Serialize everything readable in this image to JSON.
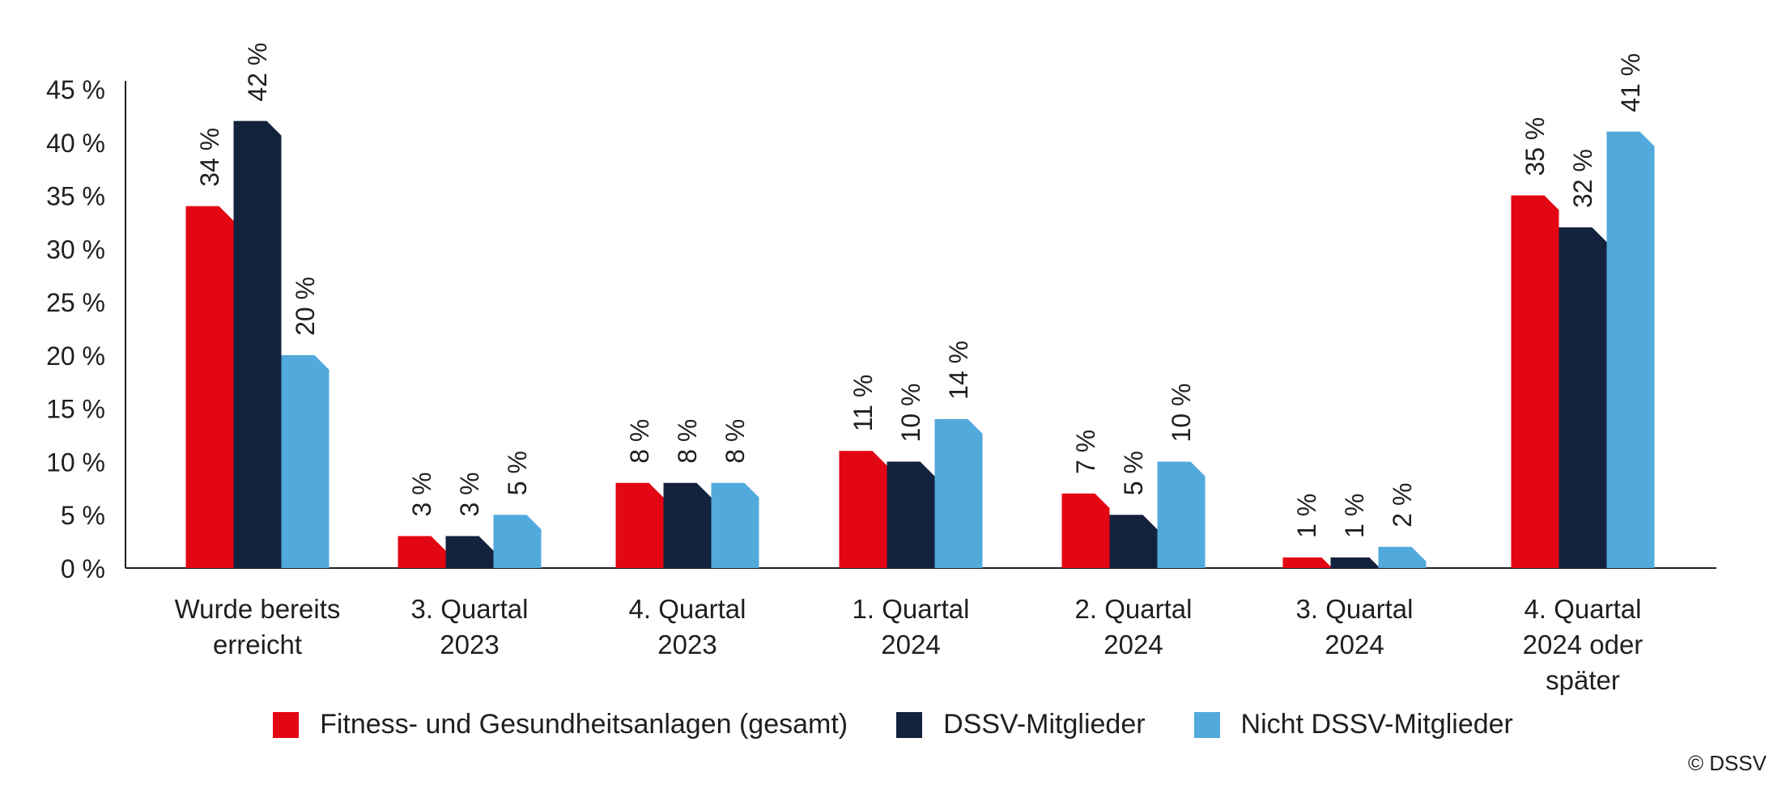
{
  "chart_data": {
    "type": "bar",
    "categories": [
      [
        "Wurde bereits",
        "erreicht"
      ],
      [
        "3. Quartal",
        "2023"
      ],
      [
        "4. Quartal",
        "2023"
      ],
      [
        "1. Quartal",
        "2024"
      ],
      [
        "2. Quartal",
        "2024"
      ],
      [
        "3. Quartal",
        "2024"
      ],
      [
        "4. Quartal",
        "2024 oder",
        "später"
      ]
    ],
    "series": [
      {
        "name": "Fitness- und Gesundheitsanlagen (gesamt)",
        "color": "#e30613",
        "values": [
          34,
          3,
          8,
          11,
          7,
          1,
          35
        ]
      },
      {
        "name": "DSSV-Mitglieder",
        "color": "#13223d",
        "values": [
          42,
          3,
          8,
          10,
          5,
          1,
          32
        ]
      },
      {
        "name": "Nicht DSSV-Mitglieder",
        "color": "#52a9db",
        "values": [
          20,
          5,
          8,
          14,
          10,
          2,
          41
        ]
      }
    ],
    "data_labels": [
      [
        "34 %",
        "3 %",
        "8 %",
        "11 %",
        "7 %",
        "1 %",
        "35 %"
      ],
      [
        "42 %",
        "3 %",
        "8 %",
        "10 %",
        "5 %",
        "1 %",
        "32 %"
      ],
      [
        "20 %",
        "5 %",
        "8 %",
        "14 %",
        "10 %",
        "2 %",
        "41 %"
      ]
    ],
    "y_ticks": [
      "0 %",
      "5 %",
      "10 %",
      "15 %",
      "20 %",
      "25 %",
      "30 %",
      "35 %",
      "40 %",
      "45 %"
    ],
    "ylim": [
      0,
      45
    ],
    "grid": false,
    "legend_position": "bottom"
  },
  "legend": {
    "items": [
      {
        "label": "Fitness- und Gesundheitsanlagen (gesamt)",
        "color": "#e30613"
      },
      {
        "label": "DSSV-Mitglieder",
        "color": "#13223d"
      },
      {
        "label": "Nicht DSSV-Mitglieder",
        "color": "#52a9db"
      }
    ]
  },
  "copyright": "© DSSV"
}
